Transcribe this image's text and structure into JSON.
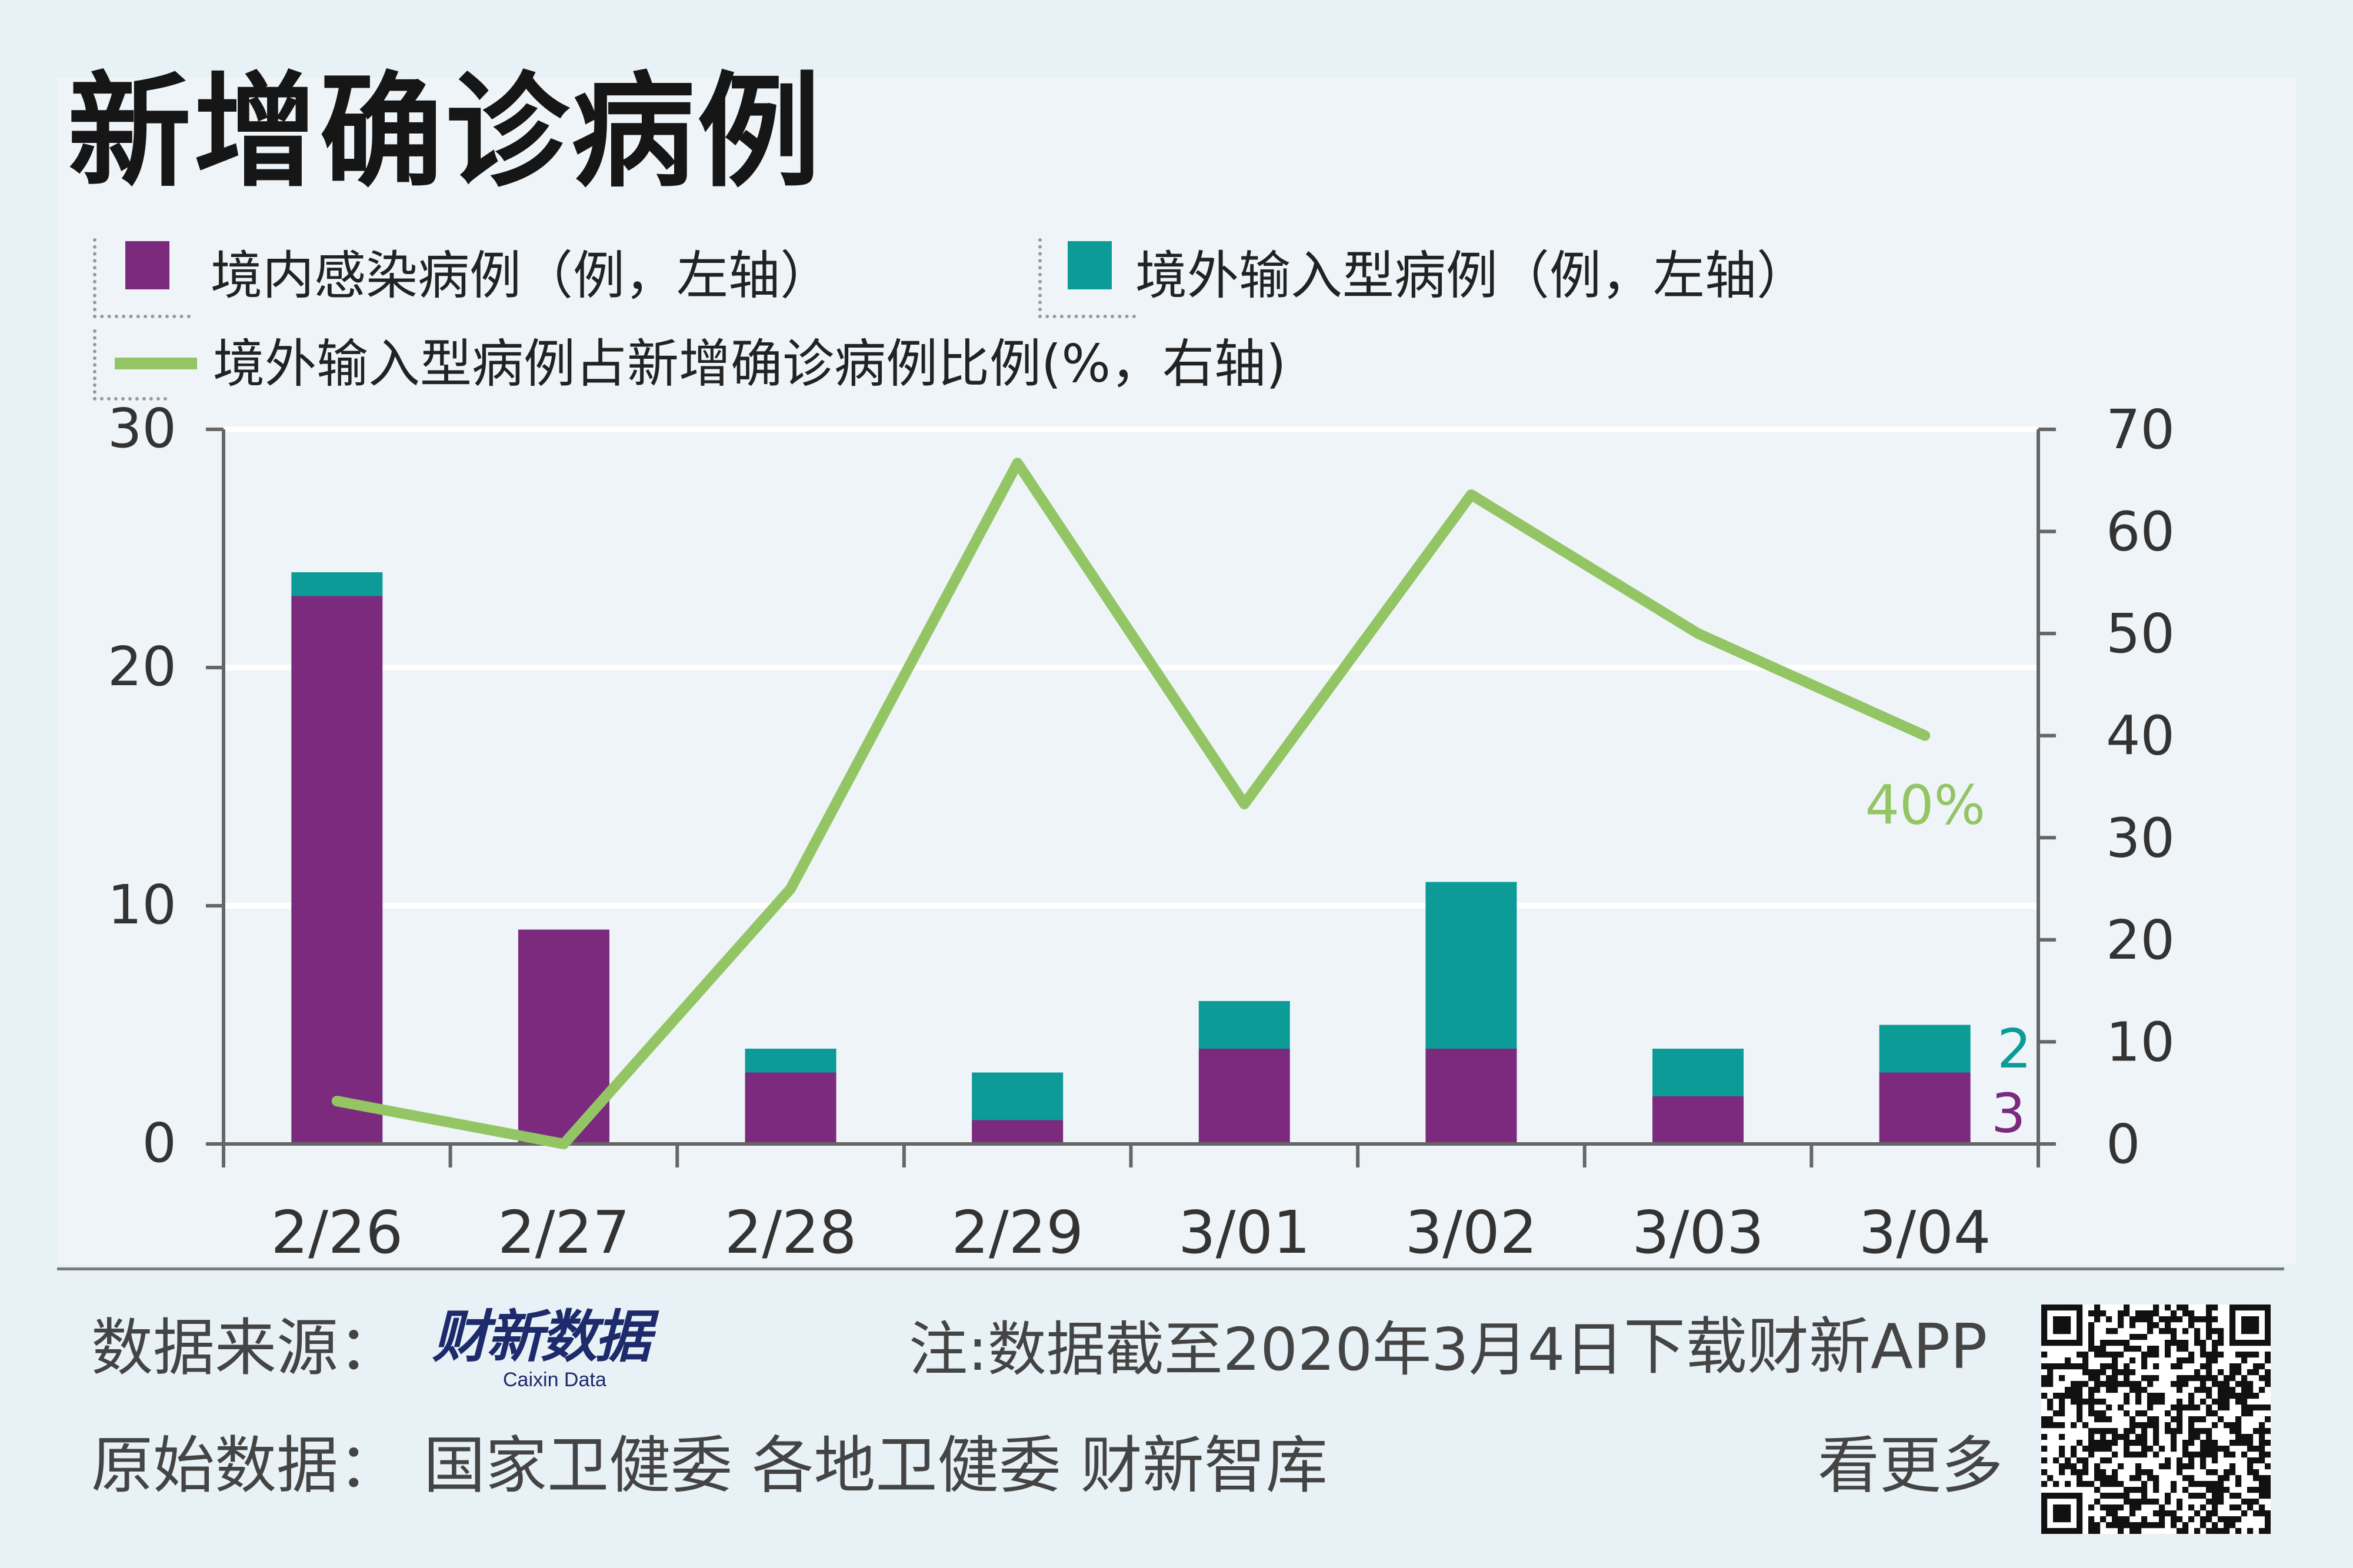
{
  "title": "新增确诊病例",
  "legend": {
    "local": "境内感染病例（例，左轴）",
    "imported": "境外输入型病例（例，左轴）",
    "ratio": "境外输入型病例占新增确诊病例比例(%，右轴)"
  },
  "colors": {
    "local": "#7b2a7e",
    "imported": "#0d9b98",
    "ratio": "#93c565",
    "axis": "#666666"
  },
  "chart_data": {
    "type": "bar",
    "stacked": true,
    "categories": [
      "2/26",
      "2/27",
      "2/28",
      "2/29",
      "3/01",
      "3/02",
      "3/03",
      "3/04"
    ],
    "series": [
      {
        "name": "境内感染病例（例，左轴）",
        "axis": "left",
        "values": [
          23,
          9,
          3,
          1,
          4,
          4,
          2,
          3
        ]
      },
      {
        "name": "境外输入型病例（例，左轴）",
        "axis": "left",
        "values": [
          1,
          0,
          1,
          2,
          2,
          7,
          2,
          2
        ]
      },
      {
        "name": "境外输入型病例占新增确诊病例比例(%，右轴)",
        "axis": "right",
        "type": "line",
        "values": [
          4.2,
          0,
          25,
          66.7,
          33.3,
          63.6,
          50,
          40
        ]
      }
    ],
    "left_ylim": [
      0,
      30
    ],
    "left_ticks": [
      "0",
      "10",
      "20",
      "30"
    ],
    "right_ylim": [
      0,
      70
    ],
    "right_ticks": [
      "0",
      "10",
      "20",
      "30",
      "40",
      "50",
      "60",
      "70"
    ],
    "annotations": {
      "last_ratio": "40%",
      "last_imported": "2",
      "last_local": "3"
    },
    "grid": true
  },
  "footer": {
    "source_label": "数据来源：",
    "logo_cn": "财新数据",
    "logo_en": "Caixin Data",
    "note": "注:数据截至2020年3月4日",
    "download": "下载财新APP",
    "raw_label": "原始数据：",
    "raw_sources": "国家卫健委  各地卫健委  财新智库",
    "see_more": "看更多"
  }
}
